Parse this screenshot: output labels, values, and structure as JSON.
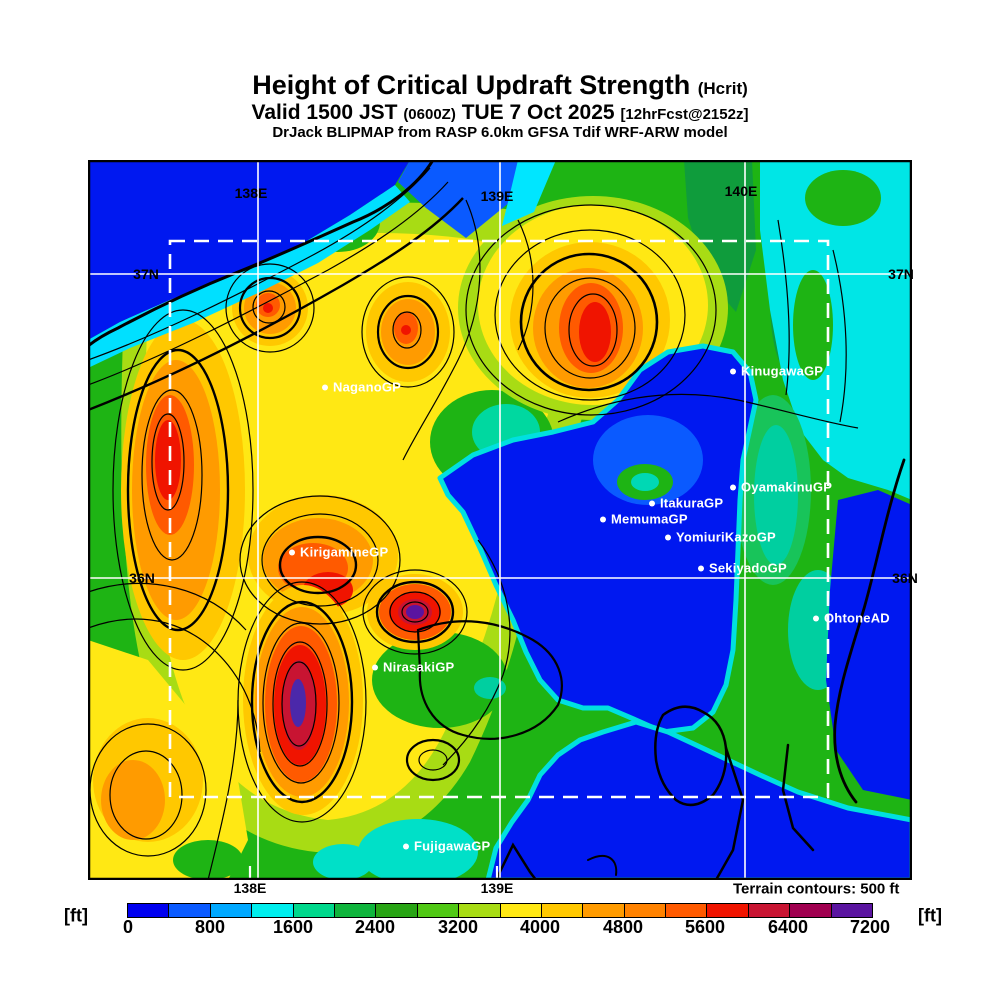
{
  "header": {
    "title": "Height of Critical Updraft Strength",
    "title_note": "(Hcrit)",
    "valid_prefix": "Valid 1500 JST",
    "valid_utc": "(0600Z)",
    "valid_date": "TUE 7 Oct 2025",
    "valid_fcst": "[12hrFcst@2152z]",
    "model_line": "DrJack BLIPMAP from RASP 6.0km GFSA Tdif WRF-ARW model"
  },
  "map": {
    "lon_top": [
      "138E",
      "139E",
      "140E"
    ],
    "lon_bottom": [
      "138E",
      "139E"
    ],
    "lat_left": [
      "37N",
      "36N"
    ],
    "lat_right": [
      "37N",
      "36N"
    ],
    "note": "Terrain contours: 500 ft",
    "sites": [
      {
        "name": "KinugawaGP"
      },
      {
        "name": "NaganoGP"
      },
      {
        "name": "OyamakinuGP"
      },
      {
        "name": "ItakuraGP"
      },
      {
        "name": "MemumaGP"
      },
      {
        "name": "YomiuriKazoGP"
      },
      {
        "name": "SekiyadoGP"
      },
      {
        "name": "KirigamineGP"
      },
      {
        "name": "OhtoneAD"
      },
      {
        "name": "NirasakiGP"
      },
      {
        "name": "FujigawaGP"
      }
    ]
  },
  "colorbar": {
    "unit_left": "[ft]",
    "unit_right": "[ft]",
    "ticks": [
      "0",
      "800",
      "1600",
      "2400",
      "3200",
      "4000",
      "4800",
      "5600",
      "6400",
      "7200"
    ],
    "colors": [
      "#0000f0",
      "#0a5aff",
      "#00a8ff",
      "#00eeee",
      "#00d88c",
      "#0fb43c",
      "#28a414",
      "#50c814",
      "#a8dc14",
      "#ffe814",
      "#ffc800",
      "#ff9b00",
      "#ff8200",
      "#ff5a00",
      "#f01400",
      "#c81432",
      "#a00050",
      "#5a14a0"
    ]
  },
  "chart_data": {
    "type": "heatmap",
    "title": "Height of Critical Updraft Strength (Hcrit)",
    "subtitle": "Valid 1500 JST (0600Z) TUE 7 Oct 2025 [12hrFcst@2152z]",
    "model": "DrJack BLIPMAP from RASP 6.0km GFSA Tdif WRF-ARW model",
    "units": "ft",
    "scale_ticks_ft": [
      0,
      800,
      1600,
      2400,
      3200,
      4000,
      4800,
      5600,
      6400,
      7200
    ],
    "scale_step_ft": 400,
    "scale_range_ft": [
      0,
      7200
    ],
    "scale_colors": [
      "#0000f0",
      "#0a5aff",
      "#00a8ff",
      "#00eeee",
      "#00d88c",
      "#0fb43c",
      "#28a414",
      "#50c814",
      "#a8dc14",
      "#ffe814",
      "#ffc800",
      "#ff9b00",
      "#ff8200",
      "#ff5a00",
      "#f01400",
      "#c81432",
      "#a00050",
      "#5a14a0"
    ],
    "x_axis_labels": [
      "138E",
      "139E",
      "140E"
    ],
    "y_axis_labels": [
      "37N",
      "36N"
    ],
    "annotation": "Terrain contours: 500 ft",
    "legend_position": "bottom",
    "stations": [
      "KinugawaGP",
      "NaganoGP",
      "OyamakinuGP",
      "ItakuraGP",
      "MemumaGP",
      "YomiuriKazoGP",
      "SekiyadoGP",
      "KirigamineGP",
      "OhtoneAD",
      "NirasakiGP",
      "FujigawaGP"
    ],
    "features": [
      {
        "region": "Sea of Japan (northwest)",
        "value_ft": "0-800"
      },
      {
        "region": "Northern Alps (west)",
        "value_ft": "5600-6400"
      },
      {
        "region": "Upper-center hotspot near 139E 37N",
        "value_ft": "5600-6400"
      },
      {
        "region": "South-central Alps core near NirasakiGP",
        "value_ft": "6800-7200"
      },
      {
        "region": "Secondary purple core east of KirigamineGP",
        "value_ft": "6800-7200"
      },
      {
        "region": "Kanto plain (east-center)",
        "value_ft": "0-800"
      },
      {
        "region": "Pacific coast (southeast)",
        "value_ft": "0-1600"
      },
      {
        "region": "Northeast coastal strip",
        "value_ft": "1600-2400"
      }
    ]
  }
}
